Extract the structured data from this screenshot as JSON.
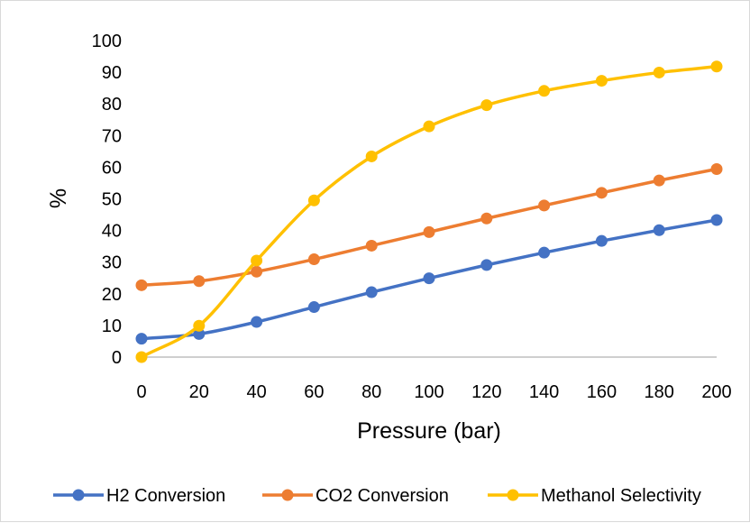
{
  "chart_data": {
    "type": "line",
    "smooth": true,
    "markers": "circle",
    "x": [
      0,
      20,
      40,
      60,
      80,
      100,
      120,
      140,
      160,
      180,
      200
    ],
    "series": [
      {
        "name": "H2 Conversion",
        "color": "#4472C4",
        "values": [
          5.8,
          7.3,
          11.1,
          15.8,
          20.5,
          24.9,
          29.1,
          33.0,
          36.7,
          40.1,
          43.3
        ]
      },
      {
        "name": "CO2 Conversion",
        "color": "#ED7D31",
        "values": [
          22.7,
          24.0,
          27.0,
          30.9,
          35.2,
          39.5,
          43.8,
          47.9,
          51.9,
          55.8,
          59.4
        ]
      },
      {
        "name": "Methanol Selectivity",
        "color": "#FFC000",
        "values": [
          0,
          9.9,
          30.5,
          49.5,
          63.4,
          72.9,
          79.6,
          84.1,
          87.3,
          89.9,
          91.8
        ]
      }
    ],
    "xlabel": "Pressure (bar)",
    "ylabel": "%",
    "xlim": [
      0,
      200
    ],
    "ylim": [
      0,
      100
    ],
    "x_ticks": [
      "0",
      "20",
      "40",
      "60",
      "80",
      "100",
      "120",
      "140",
      "160",
      "180",
      "200"
    ],
    "y_ticks": [
      "0",
      "10",
      "20",
      "30",
      "40",
      "50",
      "60",
      "70",
      "80",
      "90",
      "100"
    ],
    "grid": false,
    "legend_position": "bottom"
  }
}
